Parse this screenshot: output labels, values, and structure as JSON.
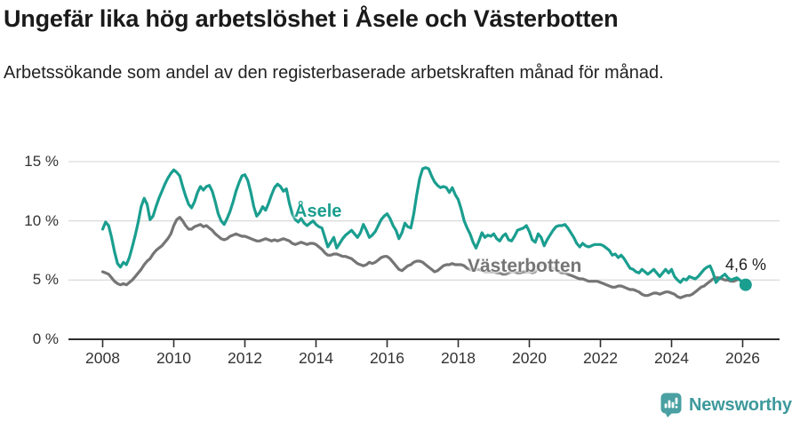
{
  "header": {
    "title": "Ungefär lika hög arbetslöshet i Åsele och Västerbotten",
    "subtitle": "Arbetssökande som andel av den registerbaserade arbetskraften månad för månad."
  },
  "footer": {
    "brand": "Newsworthy",
    "brand_color": "#3e999b",
    "logo_icon": "speech-bubble-bar-chart-icon"
  },
  "chart_data": {
    "type": "line",
    "title": "Ungefär lika hög arbetslöshet i Åsele och Västerbotten",
    "xlabel": "",
    "ylabel": "",
    "x_unit": "month",
    "x_start_year": 2008,
    "ylim": [
      0,
      15
    ],
    "grid": "horizontal",
    "legend_position": "inline-labels",
    "y_ticks": [
      {
        "label": "0 %",
        "value": 0
      },
      {
        "label": "5 %",
        "value": 5
      },
      {
        "label": "10 %",
        "value": 10
      },
      {
        "label": "15 %",
        "value": 15
      }
    ],
    "x_ticks": [
      {
        "label": "2008",
        "year": 2008
      },
      {
        "label": "2010",
        "year": 2010
      },
      {
        "label": "2012",
        "year": 2012
      },
      {
        "label": "2014",
        "year": 2014
      },
      {
        "label": "2016",
        "year": 2016
      },
      {
        "label": "2018",
        "year": 2018
      },
      {
        "label": "2020",
        "year": 2020
      },
      {
        "label": "2022",
        "year": 2022
      },
      {
        "label": "2024",
        "year": 2024
      },
      {
        "label": "2026",
        "year": 2026
      }
    ],
    "end_label": "4,6 %",
    "end_value": 4.6,
    "series": [
      {
        "name": "Västerbotten",
        "color": "#757575",
        "values": [
          5.7,
          5.6,
          5.5,
          5.2,
          4.9,
          4.7,
          4.6,
          4.7,
          4.6,
          4.8,
          5.0,
          5.3,
          5.6,
          5.9,
          6.3,
          6.6,
          6.8,
          7.2,
          7.5,
          7.7,
          7.9,
          8.2,
          8.5,
          8.9,
          9.6,
          10.1,
          10.3,
          10.0,
          9.6,
          9.3,
          9.3,
          9.5,
          9.6,
          9.7,
          9.5,
          9.6,
          9.4,
          9.2,
          8.9,
          8.7,
          8.5,
          8.4,
          8.5,
          8.7,
          8.8,
          8.9,
          8.8,
          8.7,
          8.7,
          8.6,
          8.5,
          8.4,
          8.3,
          8.3,
          8.4,
          8.5,
          8.4,
          8.3,
          8.4,
          8.3,
          8.4,
          8.5,
          8.4,
          8.3,
          8.1,
          8.0,
          8.1,
          8.2,
          8.1,
          8.0,
          8.1,
          8.1,
          8.0,
          7.8,
          7.6,
          7.3,
          7.1,
          7.1,
          7.2,
          7.2,
          7.1,
          7.0,
          7.0,
          6.9,
          6.8,
          6.6,
          6.4,
          6.3,
          6.2,
          6.3,
          6.5,
          6.4,
          6.5,
          6.7,
          6.9,
          7.0,
          7.0,
          6.8,
          6.5,
          6.2,
          5.9,
          5.8,
          6.0,
          6.2,
          6.3,
          6.5,
          6.6,
          6.6,
          6.5,
          6.3,
          6.1,
          5.9,
          5.7,
          5.8,
          6.0,
          6.2,
          6.3,
          6.3,
          6.4,
          6.3,
          6.3,
          6.3,
          6.2,
          6.0,
          5.9,
          5.8,
          5.9,
          5.9,
          5.8,
          5.7,
          5.7,
          5.7,
          5.7,
          5.6,
          5.6,
          5.5,
          5.5,
          5.6,
          5.7,
          5.7,
          5.6,
          5.6,
          5.7,
          5.7,
          5.7,
          5.6,
          5.7,
          6.1,
          6.3,
          6.3,
          6.2,
          6.1,
          6.0,
          5.9,
          5.7,
          5.6,
          5.6,
          5.5,
          5.4,
          5.3,
          5.2,
          5.1,
          5.1,
          5.0,
          4.9,
          4.9,
          4.9,
          4.9,
          4.8,
          4.7,
          4.6,
          4.5,
          4.4,
          4.4,
          4.5,
          4.5,
          4.4,
          4.3,
          4.2,
          4.2,
          4.1,
          4.0,
          3.8,
          3.7,
          3.7,
          3.8,
          3.9,
          3.9,
          3.8,
          3.9,
          4.0,
          4.0,
          3.9,
          3.8,
          3.6,
          3.5,
          3.6,
          3.7,
          3.7,
          3.8,
          4.0,
          4.2,
          4.4,
          4.5,
          4.7,
          4.9,
          5.1,
          5.2,
          5.2,
          5.1,
          5.0,
          5.0,
          4.9,
          4.9,
          5.0
        ]
      },
      {
        "name": "Åsele",
        "color": "#1a9e8f",
        "values": [
          9.3,
          9.9,
          9.6,
          8.6,
          7.4,
          6.4,
          6.1,
          6.5,
          6.3,
          6.9,
          7.8,
          8.8,
          9.9,
          11.2,
          11.9,
          11.4,
          10.1,
          10.4,
          11.2,
          11.9,
          12.5,
          13.1,
          13.6,
          14.0,
          14.3,
          14.1,
          13.8,
          12.9,
          12.1,
          11.4,
          11.1,
          11.6,
          12.4,
          12.9,
          12.6,
          12.9,
          13.0,
          12.5,
          11.6,
          10.6,
          10.0,
          9.7,
          10.2,
          10.8,
          11.6,
          12.5,
          13.2,
          13.8,
          13.9,
          13.4,
          12.4,
          11.2,
          10.4,
          10.7,
          11.2,
          10.9,
          11.5,
          12.2,
          12.8,
          13.1,
          12.9,
          12.5,
          12.7,
          11.5,
          10.6,
          10.1,
          9.9,
          10.2,
          9.8,
          9.6,
          9.8,
          10.0,
          9.7,
          9.5,
          9.4,
          8.6,
          7.8,
          8.2,
          8.6,
          7.7,
          8.1,
          8.5,
          8.8,
          9.0,
          9.2,
          8.9,
          8.6,
          9.0,
          9.7,
          9.2,
          8.6,
          8.8,
          9.1,
          9.6,
          10.1,
          10.4,
          10.6,
          10.2,
          9.6,
          9.2,
          8.5,
          9.0,
          9.8,
          9.5,
          9.4,
          10.6,
          12.2,
          13.6,
          14.4,
          14.5,
          14.4,
          13.8,
          13.3,
          13.0,
          12.8,
          12.9,
          12.8,
          12.4,
          12.8,
          12.2,
          11.8,
          11.0,
          10.0,
          9.4,
          8.9,
          8.2,
          7.7,
          8.3,
          9.0,
          8.6,
          8.8,
          8.7,
          8.9,
          8.5,
          8.3,
          8.7,
          8.9,
          8.4,
          8.3,
          8.7,
          9.2,
          9.3,
          9.4,
          9.6,
          9.1,
          8.4,
          8.2,
          8.9,
          8.6,
          7.9,
          8.4,
          8.8,
          9.2,
          9.5,
          9.6,
          9.6,
          9.7,
          9.4,
          9.0,
          8.6,
          8.1,
          7.8,
          8.1,
          7.9,
          7.8,
          7.9,
          8.0,
          8.0,
          8.0,
          7.9,
          7.7,
          7.5,
          7.1,
          7.2,
          6.9,
          7.1,
          6.8,
          6.4,
          6.0,
          5.9,
          5.7,
          5.6,
          5.9,
          5.7,
          5.5,
          5.7,
          5.9,
          5.6,
          5.3,
          5.6,
          5.9,
          5.6,
          5.9,
          5.3,
          5.0,
          4.8,
          5.1,
          5.0,
          5.3,
          5.2,
          5.1,
          5.3,
          5.6,
          5.9,
          6.1,
          6.2,
          5.6,
          4.8,
          5.1,
          5.3,
          5.5,
          5.2,
          5.0,
          5.1,
          5.2,
          5.0,
          4.8,
          4.6
        ]
      }
    ]
  }
}
